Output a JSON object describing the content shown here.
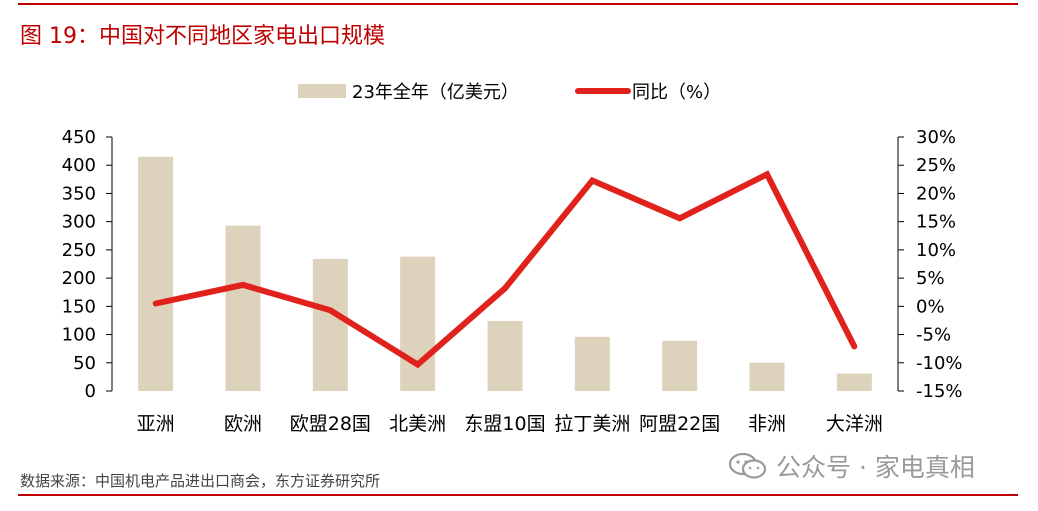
{
  "title": "图 19：中国对不同地区家电出口规模",
  "source": "数据来源：中国机电产品进出口商会，东方证券研究所",
  "watermark": {
    "text": "公众号 · 家电真相",
    "icon": "wechat-icon"
  },
  "colors": {
    "accent": "#c00000",
    "bar": "#ddd3bc",
    "line": "#e0211c"
  },
  "chart_data": {
    "type": "bar",
    "categories": [
      "亚洲",
      "欧洲",
      "欧盟28国",
      "北美洲",
      "东盟10国",
      "拉丁美洲",
      "阿盟22国",
      "非洲",
      "大洋洲"
    ],
    "series": [
      {
        "name": "23年全年（亿美元）",
        "type": "bar",
        "axis": "left",
        "values": [
          415,
          293,
          234,
          238,
          124,
          96,
          89,
          50,
          31
        ]
      },
      {
        "name": "同比（%）",
        "type": "line",
        "axis": "right",
        "values": [
          0.5,
          3.8,
          -0.7,
          -10.3,
          3.2,
          22.3,
          15.6,
          23.4,
          -7.1
        ]
      }
    ],
    "y_left": {
      "range": [
        0,
        450
      ],
      "ticks": [
        "0",
        "50",
        "100",
        "150",
        "200",
        "250",
        "300",
        "350",
        "400",
        "450"
      ]
    },
    "y_right": {
      "range": [
        -15,
        30
      ],
      "ticks": [
        "-15%",
        "-10%",
        "-5%",
        "0%",
        "5%",
        "10%",
        "15%",
        "20%",
        "25%",
        "30%"
      ]
    },
    "legend_position": "top-center",
    "grid": false
  }
}
